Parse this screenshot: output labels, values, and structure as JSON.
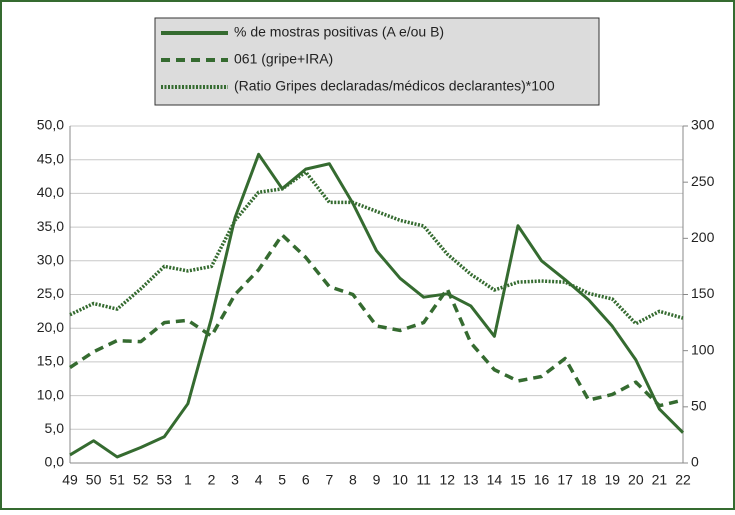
{
  "chart_data": {
    "type": "line",
    "categories": [
      "49",
      "50",
      "51",
      "52",
      "53",
      "1",
      "2",
      "3",
      "4",
      "5",
      "6",
      "7",
      "8",
      "9",
      "10",
      "11",
      "12",
      "13",
      "14",
      "15",
      "16",
      "17",
      "18",
      "19",
      "20",
      "21",
      "22"
    ],
    "series": [
      {
        "name": "% de mostras positivas (A e/ou B)",
        "color": "#356b30",
        "style": "solid",
        "values": [
          1.2,
          3.3,
          0.9,
          2.3,
          3.9,
          8.8,
          21.5,
          36.4,
          45.8,
          40.7,
          43.6,
          44.4,
          38.5,
          31.5,
          27.4,
          24.6,
          25.1,
          23.3,
          18.8,
          35.2,
          30.0,
          27.2,
          24.2,
          20.3,
          15.3,
          8.0,
          4.5
        ]
      },
      {
        "name": "061 (gripe+IRA)",
        "color": "#356b30",
        "style": "dashed",
        "axis": "y2",
        "values": [
          85,
          99,
          109,
          108,
          125,
          127,
          113,
          150,
          172,
          203,
          183,
          157,
          150,
          122,
          118,
          125,
          155,
          107,
          83,
          73,
          77,
          93,
          56,
          61,
          72,
          51,
          56
        ]
      },
      {
        "name": "(Ratio Gripes declaradas/médicos declarantes)*100",
        "color": "#356b30",
        "style": "dotted",
        "axis": "y2",
        "values": [
          132,
          142,
          137,
          155,
          175,
          171,
          175,
          216,
          241,
          244,
          259,
          232,
          232,
          224,
          216,
          211,
          186,
          168,
          154,
          161,
          162,
          161,
          151,
          146,
          124,
          135,
          129
        ]
      }
    ],
    "ylim": [
      0,
      50
    ],
    "yticks": [
      {
        "value": 0,
        "label": "0,0"
      },
      {
        "value": 5,
        "label": "5,0"
      },
      {
        "value": 10,
        "label": "10,0"
      },
      {
        "value": 15,
        "label": "15,0"
      },
      {
        "value": 20,
        "label": "20,0"
      },
      {
        "value": 25,
        "label": "25,0"
      },
      {
        "value": 30,
        "label": "30,0"
      },
      {
        "value": 35,
        "label": "35,0"
      },
      {
        "value": 40,
        "label": "40,0"
      },
      {
        "value": 45,
        "label": "45,0"
      },
      {
        "value": 50,
        "label": "50,0"
      }
    ],
    "y2lim": [
      0,
      300
    ],
    "y2ticks": [
      0,
      50,
      100,
      150,
      200,
      250,
      300
    ],
    "grid": true
  }
}
